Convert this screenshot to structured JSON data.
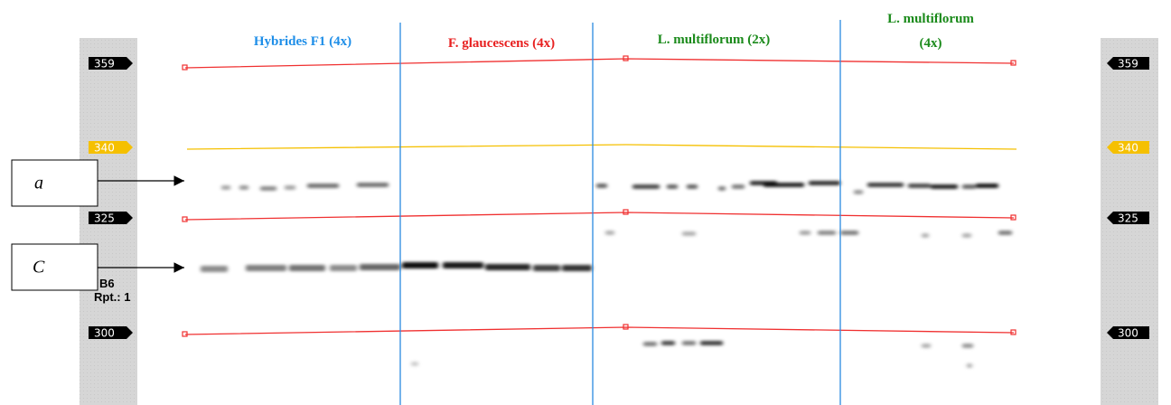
{
  "groups": [
    {
      "lines": [
        "Hybrides F1 (4x)"
      ]
    },
    {
      "lines": [
        "F. glaucescens (4x)"
      ]
    },
    {
      "lines": [
        "L. multiflorum (2x)"
      ]
    },
    {
      "lines": [
        "L. multiflorum",
        "(4x)"
      ]
    }
  ],
  "size_markers": [
    359,
    340,
    325,
    300
  ],
  "annotations": [
    "a",
    "C"
  ],
  "lane_info": {
    "name": "B6",
    "repeat": "Rpt.: 1"
  }
}
